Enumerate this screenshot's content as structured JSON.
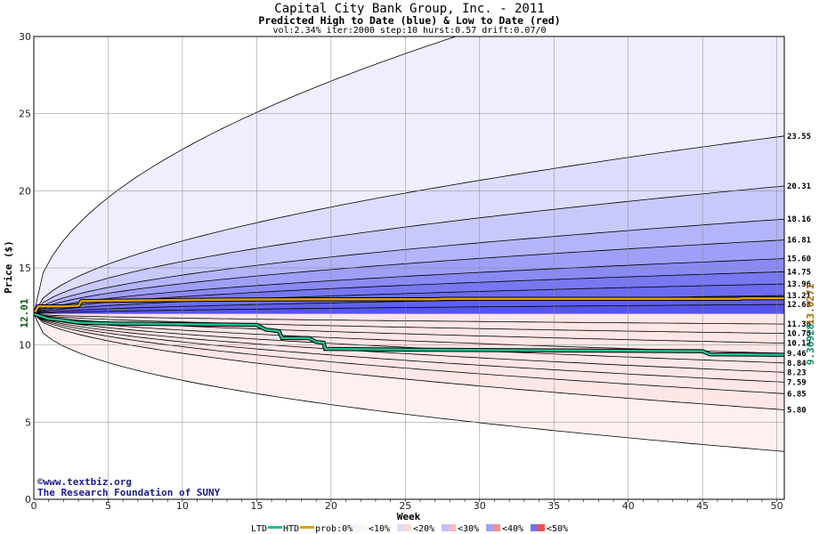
{
  "header": {
    "title": "Capital City Bank Group, Inc. - 2011",
    "subtitle": "Predicted High to Date (blue) &  Low to Date (red)",
    "params": "vol:2.34% iter:2000 step:10 hurst:0.57 drift:0.07/0"
  },
  "credits": {
    "line1": "©www.textbiz.org",
    "line2": "The Research Foundation of SUNY"
  },
  "chart_data": {
    "type": "area",
    "xlabel": "Week",
    "ylabel": "Price ($)",
    "xlim": [
      0,
      50.5
    ],
    "ylim": [
      0,
      30
    ],
    "x_ticks": [
      0,
      5,
      10,
      15,
      20,
      25,
      30,
      35,
      40,
      45,
      50
    ],
    "y_ticks": [
      0,
      5,
      10,
      15,
      20,
      25,
      30
    ],
    "grid": true,
    "start_price": 12.01,
    "start_label": "12.01",
    "upper_bands": [
      {
        "end": 23.55,
        "label": "23.55",
        "fill": "#dcdcff"
      },
      {
        "end": 20.31,
        "label": "20.31",
        "fill": "#c8c8fa"
      },
      {
        "end": 18.16,
        "label": "18.16",
        "fill": "#b4b4fa"
      },
      {
        "end": 16.81,
        "label": "16.81",
        "fill": "#9f9ff8"
      },
      {
        "end": 15.6,
        "label": "15.60",
        "fill": "#8a8af5"
      },
      {
        "end": 14.75,
        "label": "14.75",
        "fill": "#7878f2"
      },
      {
        "end": 13.96,
        "label": "13.96",
        "fill": "#6c6cf0"
      },
      {
        "end": 13.21,
        "label": "13.21",
        "fill": "#6060ee"
      },
      {
        "end": 12.63,
        "label": "12.63",
        "fill": "#5555ec"
      }
    ],
    "outer_upper_fill": "#eeeeff",
    "lower_bands": [
      {
        "end": 11.36,
        "label": "11.36",
        "fill": "#f05050"
      },
      {
        "end": 10.75,
        "label": "10.75",
        "fill": "#f26a6a"
      },
      {
        "end": 10.12,
        "label": "10.12",
        "fill": "#f47c7c"
      },
      {
        "end": 9.46,
        "label": "9.46",
        "fill": "#f68e8e"
      },
      {
        "end": 8.84,
        "label": "8.84",
        "fill": "#f8a4a4"
      },
      {
        "end": 8.23,
        "label": "8.23",
        "fill": "#fab8b8"
      },
      {
        "end": 7.59,
        "label": "7.59",
        "fill": "#fccaca"
      },
      {
        "end": 6.85,
        "label": "6.85",
        "fill": "#fdd8d8"
      },
      {
        "end": 5.8,
        "label": "5.80",
        "fill": "#fee6e6"
      }
    ],
    "outer_lower_fill": "#fff0f0",
    "outer_upper_end": 36,
    "outer_lower_end": 3.1,
    "series": [
      {
        "name": "HTD",
        "color": "#e0a000",
        "end_label": "13.0271",
        "points": [
          [
            0,
            12.01
          ],
          [
            0.3,
            12.5
          ],
          [
            1,
            12.5
          ],
          [
            2,
            12.5
          ],
          [
            3,
            12.55
          ],
          [
            3.2,
            12.85
          ],
          [
            8,
            12.9
          ],
          [
            14,
            12.95
          ],
          [
            20,
            12.97
          ],
          [
            27,
            12.97
          ],
          [
            27.5,
            13.0
          ],
          [
            40,
            13.0
          ],
          [
            47.5,
            13.0
          ],
          [
            47.6,
            13.03
          ],
          [
            50.5,
            13.03
          ]
        ]
      },
      {
        "name": "LTD",
        "color": "#20c090",
        "end_label": "9.36928",
        "points": [
          [
            0,
            12.01
          ],
          [
            1,
            11.7
          ],
          [
            2,
            11.6
          ],
          [
            3,
            11.45
          ],
          [
            5,
            11.4
          ],
          [
            10,
            11.35
          ],
          [
            15,
            11.3
          ],
          [
            15.6,
            11.0
          ],
          [
            16.5,
            10.9
          ],
          [
            16.7,
            10.45
          ],
          [
            18.5,
            10.45
          ],
          [
            19,
            10.2
          ],
          [
            19.5,
            10.15
          ],
          [
            19.6,
            9.75
          ],
          [
            25,
            9.7
          ],
          [
            35,
            9.65
          ],
          [
            45,
            9.6
          ],
          [
            45.5,
            9.4
          ],
          [
            50.5,
            9.37
          ]
        ]
      }
    ]
  },
  "legend": {
    "ltd": "LTD",
    "htd": "HTD",
    "prob": "prob:0%",
    "items": [
      {
        "label": "<10%",
        "color": "#f4f4ff",
        "color2": "#fff4f4"
      },
      {
        "label": "<20%",
        "color": "#dcdcff",
        "color2": "#fdd8d8"
      },
      {
        "label": "<30%",
        "color": "#c0c0fa",
        "color2": "#fab8b8"
      },
      {
        "label": "<40%",
        "color": "#a0a0f8",
        "color2": "#f68e8e"
      },
      {
        "label": "<50%",
        "color": "#7070f0",
        "color2": "#f05050"
      }
    ]
  }
}
